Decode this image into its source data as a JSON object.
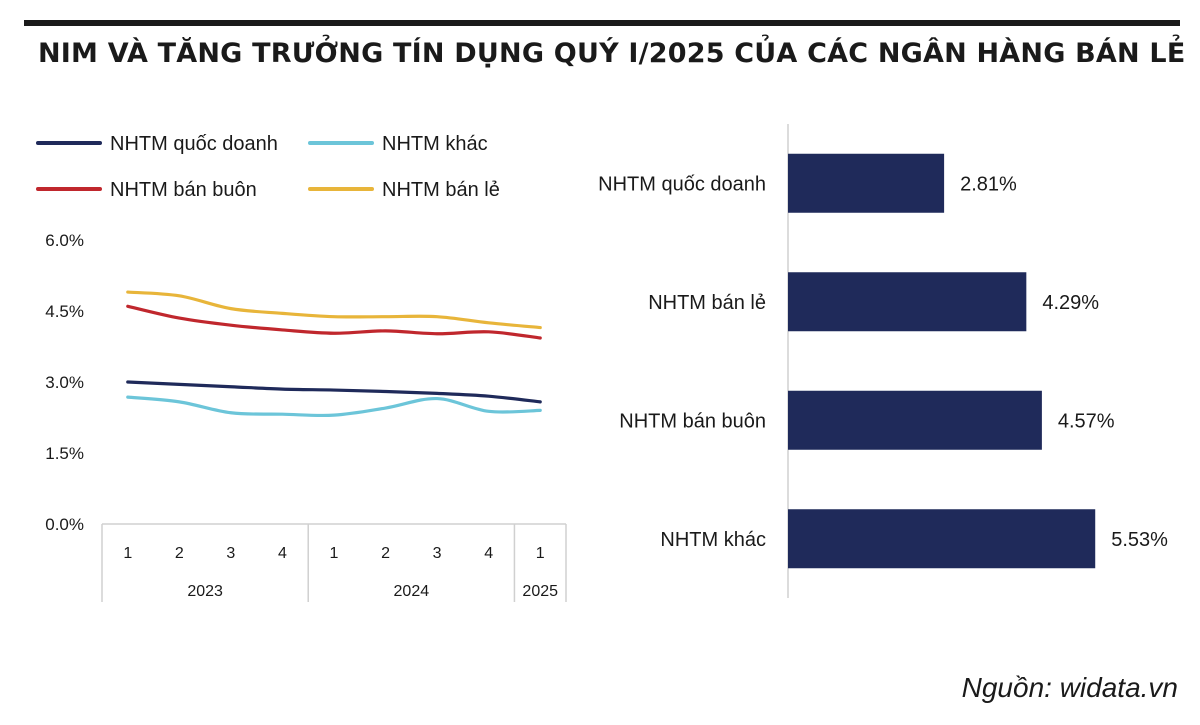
{
  "title": "NIM VÀ TĂNG TRƯỞNG TÍN DỤNG QUÝ I/2025 CỦA CÁC NGÂN HÀNG BÁN LẺ",
  "source": "Nguồn: widata.vn",
  "colors": {
    "quoc_doanh": "#1f2a5a",
    "khac": "#6cc5d9",
    "ban_buon": "#c0272d",
    "ban_le": "#e8b53a",
    "bar": "#1f2a5a",
    "axis": "#d0d0d0"
  },
  "chart_data": [
    {
      "type": "line",
      "legend": {
        "placement": "top",
        "entries": [
          "NHTM quốc doanh",
          "NHTM khác",
          "NHTM bán buôn",
          "NHTM bán lẻ"
        ]
      },
      "x": [
        "1",
        "2",
        "3",
        "4",
        "1",
        "2",
        "3",
        "4",
        "1"
      ],
      "x_groups": [
        {
          "label": "2023",
          "count": 4
        },
        {
          "label": "2024",
          "count": 4
        },
        {
          "label": "2025",
          "count": 1
        }
      ],
      "y_ticks": [
        "6.0%",
        "4.5%",
        "3.0%",
        "1.5%",
        "0.0%"
      ],
      "ylim": [
        0,
        6
      ],
      "grid": false,
      "series": [
        {
          "name": "NHTM quốc doanh",
          "color_key": "quoc_doanh",
          "values": [
            3.0,
            2.95,
            2.9,
            2.85,
            2.83,
            2.8,
            2.76,
            2.7,
            2.58
          ]
        },
        {
          "name": "NHTM khác",
          "color_key": "khac",
          "values": [
            2.68,
            2.58,
            2.35,
            2.32,
            2.3,
            2.45,
            2.65,
            2.38,
            2.4
          ]
        },
        {
          "name": "NHTM bán buôn",
          "color_key": "ban_buon",
          "values": [
            4.6,
            4.35,
            4.2,
            4.1,
            4.03,
            4.08,
            4.02,
            4.06,
            3.93
          ]
        },
        {
          "name": "NHTM bán lẻ",
          "color_key": "ban_le",
          "values": [
            4.9,
            4.82,
            4.55,
            4.45,
            4.38,
            4.38,
            4.38,
            4.25,
            4.15
          ]
        }
      ]
    },
    {
      "type": "bar",
      "orientation": "horizontal",
      "categories": [
        "NHTM quốc doanh",
        "NHTM bán lẻ",
        "NHTM bán buôn",
        "NHTM khác"
      ],
      "values": [
        2.81,
        4.29,
        4.57,
        5.53
      ],
      "labels": [
        "2.81%",
        "4.29%",
        "4.57%",
        "5.53%"
      ],
      "xlim": [
        0,
        6.3
      ]
    }
  ]
}
